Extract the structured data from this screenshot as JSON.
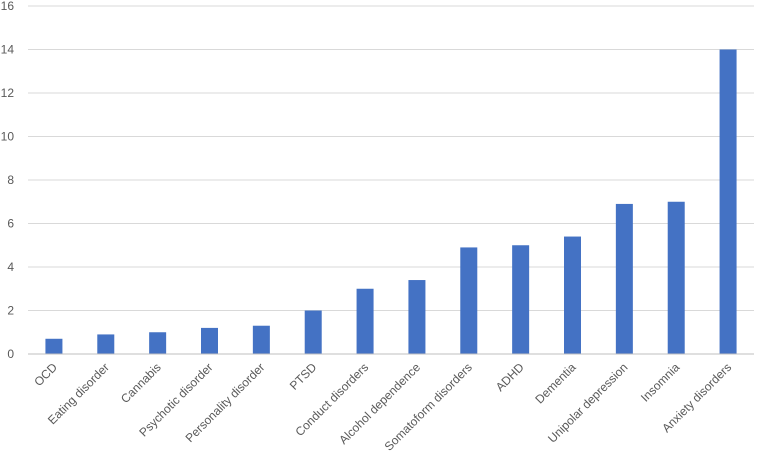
{
  "chart_data": {
    "type": "bar",
    "title": "",
    "xlabel": "",
    "ylabel": "",
    "ylim": [
      0,
      16
    ],
    "yticks": [
      0,
      2,
      4,
      6,
      8,
      10,
      12,
      14,
      16
    ],
    "grid": true,
    "legend": "none",
    "bar_color": "#4472C4",
    "categories": [
      "OCD",
      "Eating disorder",
      "Cannabis",
      "Psychotic disorder",
      "Personality disorder",
      "PTSD",
      "Conduct disorders",
      "Alcohol dependence",
      "Somatoform disorders",
      "ADHD",
      "Dementia",
      "Unipolar depression",
      "Insomnia",
      "Anxiety disorders"
    ],
    "values": [
      0.7,
      0.9,
      1.0,
      1.2,
      1.3,
      2.0,
      3.0,
      3.4,
      4.9,
      5.0,
      5.4,
      6.9,
      7.0,
      14.0
    ]
  }
}
